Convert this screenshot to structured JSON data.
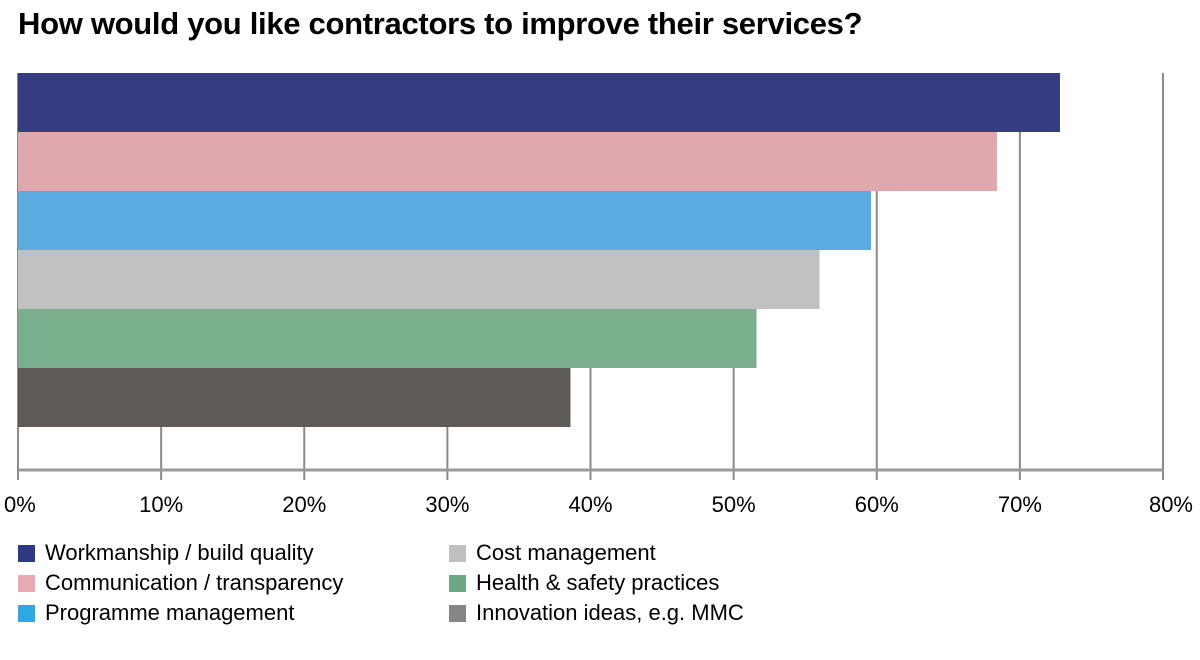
{
  "chart_data": {
    "type": "bar",
    "orientation": "horizontal",
    "title": "How would you like contractors to improve their services?",
    "xlabel": "",
    "ylabel": "",
    "xlim": [
      0,
      80
    ],
    "x_ticks": [
      "0%",
      "10%",
      "20%",
      "30%",
      "40%",
      "50%",
      "60%",
      "70%",
      "80%"
    ],
    "x_tick_values": [
      0,
      10,
      20,
      30,
      40,
      50,
      60,
      70,
      80
    ],
    "grid": "vertical",
    "legend_position": "bottom",
    "categories": [
      "Workmanship / build quality",
      "Communication / transparency",
      "Programme management",
      "Cost management",
      "Health & safety practices",
      "Innovation ideas, e.g. MMC"
    ],
    "values": [
      72.8,
      68.4,
      59.6,
      56.0,
      51.6,
      38.6
    ],
    "unit": "%",
    "bar_colors": [
      "#343c82",
      "#e0a8ae",
      "#5aace0",
      "#c1c1c1",
      "#79af8c",
      "#5d5a58"
    ],
    "legend": [
      {
        "label": "Workmanship / build quality",
        "color": "#2c3a86"
      },
      {
        "label": "Communication / transparency",
        "color": "#e8a9b1"
      },
      {
        "label": "Programme management",
        "color": "#2aa9e3"
      },
      {
        "label": "Cost management",
        "color": "#c0c0c2"
      },
      {
        "label": "Health & safety practices",
        "color": "#6aa983"
      },
      {
        "label": "Innovation ideas, e.g. MMC",
        "color": "#868686"
      }
    ]
  },
  "colors": {
    "gridline": "#8a8a8a",
    "axis": "#9a9a9a"
  }
}
